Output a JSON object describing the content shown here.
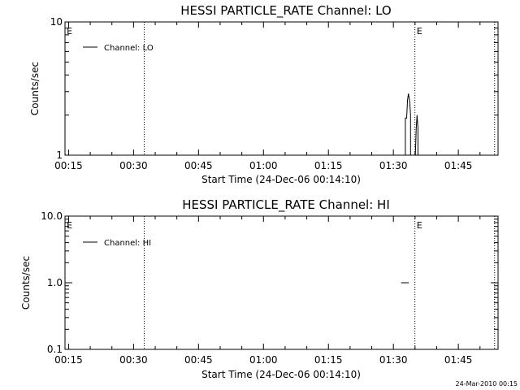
{
  "chart_data": [
    {
      "type": "line",
      "title": "HESSI PARTICLE_RATE Channel: LO",
      "xlabel": "Start Time (24-Dec-06 00:14:10)",
      "ylabel": "Counts/sec",
      "x_tick_labels": [
        "00:15",
        "00:30",
        "00:45",
        "01:00",
        "01:15",
        "01:30",
        "01:45"
      ],
      "x_ticks_min_after_start": [
        0.83,
        15.83,
        30.83,
        45.83,
        60.83,
        75.83,
        90.83
      ],
      "xlim_min_after_start": [
        0,
        100
      ],
      "y_tick_labels": [
        "1",
        "10"
      ],
      "y_ticks": [
        1,
        10
      ],
      "ylim": [
        1,
        10
      ],
      "yscale": "log",
      "legend": {
        "entries": [
          "Channel: LO"
        ],
        "placement": "top-left"
      },
      "event_lines_min_after_start": [
        18.3,
        80.8,
        99.2
      ],
      "event_markers": [
        {
          "label": "E",
          "at_min": 0.4
        },
        {
          "label": "E",
          "at_min": 81.2
        }
      ],
      "series": [
        {
          "name": "Channel: LO",
          "x_min_after_start": [
            78.2,
            78.6,
            78.6,
            78.9,
            79.1,
            79.3,
            79.6,
            79.8,
            79.8,
            80.0,
            80.0,
            80.9,
            81.1,
            81.3,
            81.5,
            81.5,
            81.8
          ],
          "y": [
            1.0,
            1.0,
            1.9,
            1.9,
            2.6,
            2.9,
            2.5,
            2.0,
            1.0,
            1.0,
            1.0,
            1.0,
            1.6,
            2.0,
            1.6,
            1.0,
            1.0
          ]
        }
      ]
    },
    {
      "type": "line",
      "title": "HESSI PARTICLE_RATE Channel: HI",
      "xlabel": "Start Time (24-Dec-06 00:14:10)",
      "ylabel": "Counts/sec",
      "x_tick_labels": [
        "00:15",
        "00:30",
        "00:45",
        "01:00",
        "01:15",
        "01:30",
        "01:45"
      ],
      "x_ticks_min_after_start": [
        0.83,
        15.83,
        30.83,
        45.83,
        60.83,
        75.83,
        90.83
      ],
      "xlim_min_after_start": [
        0,
        100
      ],
      "y_tick_labels": [
        "0.1",
        "1.0",
        "10.0"
      ],
      "y_ticks": [
        0.1,
        1.0,
        10.0
      ],
      "ylim": [
        0.1,
        10
      ],
      "yscale": "log",
      "legend": {
        "entries": [
          "Channel: HI"
        ],
        "placement": "top-left"
      },
      "event_lines_min_after_start": [
        18.3,
        80.8,
        99.2
      ],
      "event_markers": [
        {
          "label": "E",
          "at_min": 0.4
        },
        {
          "label": "E",
          "at_min": 81.2
        }
      ],
      "series": [
        {
          "name": "Channel: HI",
          "segments": [
            {
              "x_min_after_start": [
                77.6,
                79.4
              ],
              "y": [
                1.0,
                1.0
              ]
            },
            {
              "x_min_after_start": [
                99.8,
                100
              ],
              "y": [
                1.0,
                1.0
              ]
            }
          ]
        }
      ]
    }
  ],
  "footer": {
    "timestamp": "24-Mar-2010 00:15"
  }
}
